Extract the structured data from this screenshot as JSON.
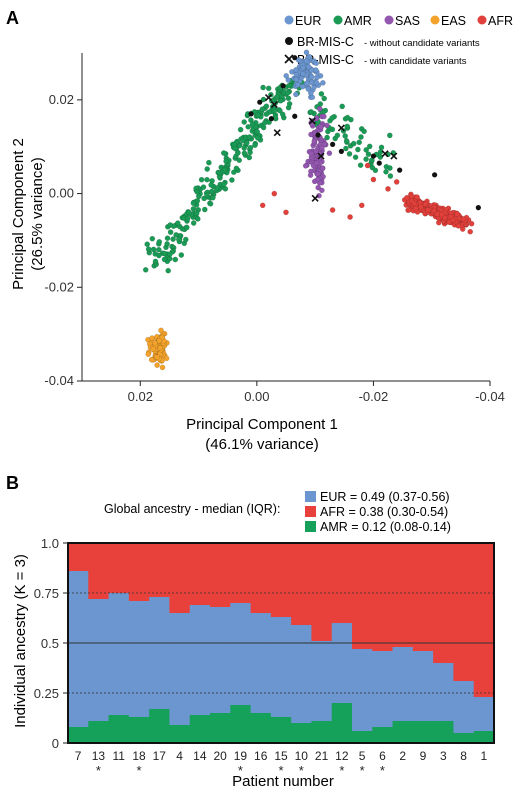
{
  "panel_a": {
    "label": "A"
  },
  "panel_b": {
    "label": "B"
  },
  "colors": {
    "EUR": "#6b96cf",
    "AMR": "#1a9a55",
    "SAS": "#9357b0",
    "EAS": "#f3a32b",
    "AFR": "#e2403b",
    "ancestry_EUR": "#6b96cf",
    "ancestry_AFR": "#e8403a",
    "ancestry_AMR": "#16a15a"
  },
  "chart_data": [
    {
      "type": "scatter",
      "xlabel": "Principal Component 1",
      "xlabel2": "(46.1% variance)",
      "ylabel": "Principal Component 2",
      "ylabel2": "(26.5% variance)",
      "xlim": [
        0.03,
        -0.04
      ],
      "ylim": [
        -0.04,
        0.03
      ],
      "x_ticks": [
        0.02,
        0.0,
        -0.02,
        -0.04
      ],
      "x_tick_labels": [
        "0.02",
        "0.00",
        "-0.02",
        "-0.04"
      ],
      "y_ticks": [
        0.02,
        0.0,
        -0.02,
        -0.04
      ],
      "y_tick_labels": [
        "0.02",
        "0.00",
        "-0.02",
        "-0.04"
      ],
      "legend_populations": [
        "EUR",
        "AMR",
        "SAS",
        "EAS",
        "AFR"
      ],
      "legend_cases": [
        {
          "marker": "dot",
          "label": "BR-MIS-C",
          "sublabel": "- without candidate variants"
        },
        {
          "marker": "cross",
          "label": "BR-MIS-C",
          "sublabel": "- with candidate variants"
        }
      ],
      "clusters": [
        {
          "name": "EUR",
          "center": [
            -0.0085,
            0.0255
          ],
          "spread": [
            0.0012,
            0.0022
          ],
          "n": 90
        },
        {
          "name": "SAS",
          "center": [
            -0.0105,
            0.0085
          ],
          "spread": [
            0.0007,
            0.0045
          ],
          "n": 110
        },
        {
          "name": "EAS",
          "center": [
            0.017,
            -0.033
          ],
          "spread": [
            0.0007,
            0.0014
          ],
          "n": 90
        }
      ],
      "amr_arm": {
        "from": [
          0.0175,
          -0.0145
        ],
        "to": [
          -0.006,
          0.024
        ],
        "width": 0.0025,
        "n": 260
      },
      "amr_spread": {
        "from": [
          -0.007,
          0.02
        ],
        "to": [
          -0.023,
          0.006
        ],
        "width": 0.004,
        "n": 70
      },
      "afr_cluster": {
        "from": [
          -0.026,
          -0.0015
        ],
        "to": [
          -0.036,
          -0.0065
        ],
        "width": 0.0012,
        "n": 320
      },
      "afr_sparse": [
        [
          -0.001,
          -0.0025
        ],
        [
          -0.005,
          -0.004
        ],
        [
          -0.013,
          -0.0035
        ],
        [
          -0.018,
          -0.0025
        ],
        [
          -0.02,
          0.003
        ],
        [
          -0.0225,
          0.001
        ],
        [
          -0.003,
          0.0
        ],
        [
          -0.016,
          -0.005
        ],
        [
          -0.024,
          0.0025
        ],
        [
          -0.019,
          0.006
        ]
      ],
      "cases_without_variants": [
        [
          -0.0065,
          0.029
        ],
        [
          -0.0045,
          0.023
        ],
        [
          -0.0005,
          0.0195
        ],
        [
          0.001,
          0.017
        ],
        [
          -0.0025,
          0.016
        ],
        [
          -0.0065,
          0.0165
        ],
        [
          -0.0105,
          0.0125
        ],
        [
          -0.013,
          0.0105
        ],
        [
          -0.0145,
          0.009
        ],
        [
          -0.02,
          0.008
        ],
        [
          -0.021,
          0.0065
        ],
        [
          -0.0245,
          0.005
        ],
        [
          -0.0305,
          0.004
        ],
        [
          -0.038,
          -0.003
        ]
      ],
      "cases_with_variants": [
        [
          -0.002,
          0.0205
        ],
        [
          -0.003,
          0.019
        ],
        [
          -0.0035,
          0.013
        ],
        [
          -0.0095,
          0.0155
        ],
        [
          -0.0145,
          0.014
        ],
        [
          -0.011,
          0.008
        ],
        [
          -0.022,
          0.0085
        ],
        [
          -0.0235,
          0.008
        ],
        [
          -0.01,
          -0.001
        ]
      ]
    },
    {
      "type": "bar",
      "stacked": true,
      "xlabel": "Patient number",
      "ylabel": "Individual ancestry (K = 3)",
      "ylim": [
        0,
        1
      ],
      "y_ticks": [
        1.0,
        0.75,
        0.5,
        0.25,
        0
      ],
      "y_tick_labels": [
        "1.0",
        "0.75",
        "0.5",
        "0.25",
        "0"
      ],
      "categories": [
        "7",
        "13",
        "11",
        "18",
        "17",
        "4",
        "14",
        "20",
        "19",
        "16",
        "15",
        "10",
        "21",
        "12",
        "5",
        "6",
        "2",
        "9",
        "3",
        "8",
        "1"
      ],
      "starred": [
        "13",
        "18",
        "19",
        "15",
        "10",
        "12",
        "5",
        "6"
      ],
      "star_symbol": "*",
      "legend_title": "Global ancestry - median (IQR):",
      "series": [
        {
          "name": "AMR",
          "legend": "AMR = 0.12 (0.08-0.14)",
          "values": [
            0.08,
            0.11,
            0.14,
            0.13,
            0.17,
            0.09,
            0.14,
            0.15,
            0.19,
            0.15,
            0.13,
            0.1,
            0.11,
            0.2,
            0.06,
            0.08,
            0.11,
            0.11,
            0.11,
            0.05,
            0.06
          ]
        },
        {
          "name": "EUR",
          "legend": "EUR = 0.49 (0.37-0.56)",
          "values": [
            0.78,
            0.61,
            0.61,
            0.58,
            0.56,
            0.56,
            0.55,
            0.53,
            0.51,
            0.5,
            0.5,
            0.49,
            0.4,
            0.4,
            0.41,
            0.38,
            0.37,
            0.35,
            0.29,
            0.26,
            0.17
          ]
        },
        {
          "name": "AFR",
          "legend": "AFR = 0.38 (0.30-0.54)",
          "values": [
            0.14,
            0.28,
            0.25,
            0.29,
            0.27,
            0.35,
            0.31,
            0.32,
            0.3,
            0.35,
            0.37,
            0.41,
            0.49,
            0.4,
            0.53,
            0.54,
            0.52,
            0.54,
            0.6,
            0.69,
            0.77
          ]
        }
      ]
    }
  ]
}
